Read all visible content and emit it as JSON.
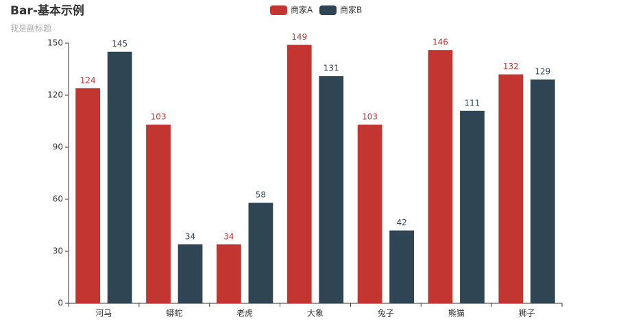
{
  "chart_data": {
    "type": "bar",
    "title": "Bar-基本示例",
    "subtitle": "我是副标题",
    "categories": [
      "河马",
      "蟒蛇",
      "老虎",
      "大象",
      "兔子",
      "熊猫",
      "狮子"
    ],
    "series": [
      {
        "name": "商家A",
        "color": "#c23531",
        "values": [
          124,
          103,
          34,
          149,
          103,
          146,
          132
        ]
      },
      {
        "name": "商家B",
        "color": "#2f4554",
        "values": [
          145,
          34,
          58,
          131,
          42,
          111,
          129
        ]
      }
    ],
    "ylim": [
      0,
      150
    ],
    "yticks": [
      0,
      30,
      60,
      90,
      120,
      150
    ],
    "grid": false,
    "legend_position": "top"
  }
}
